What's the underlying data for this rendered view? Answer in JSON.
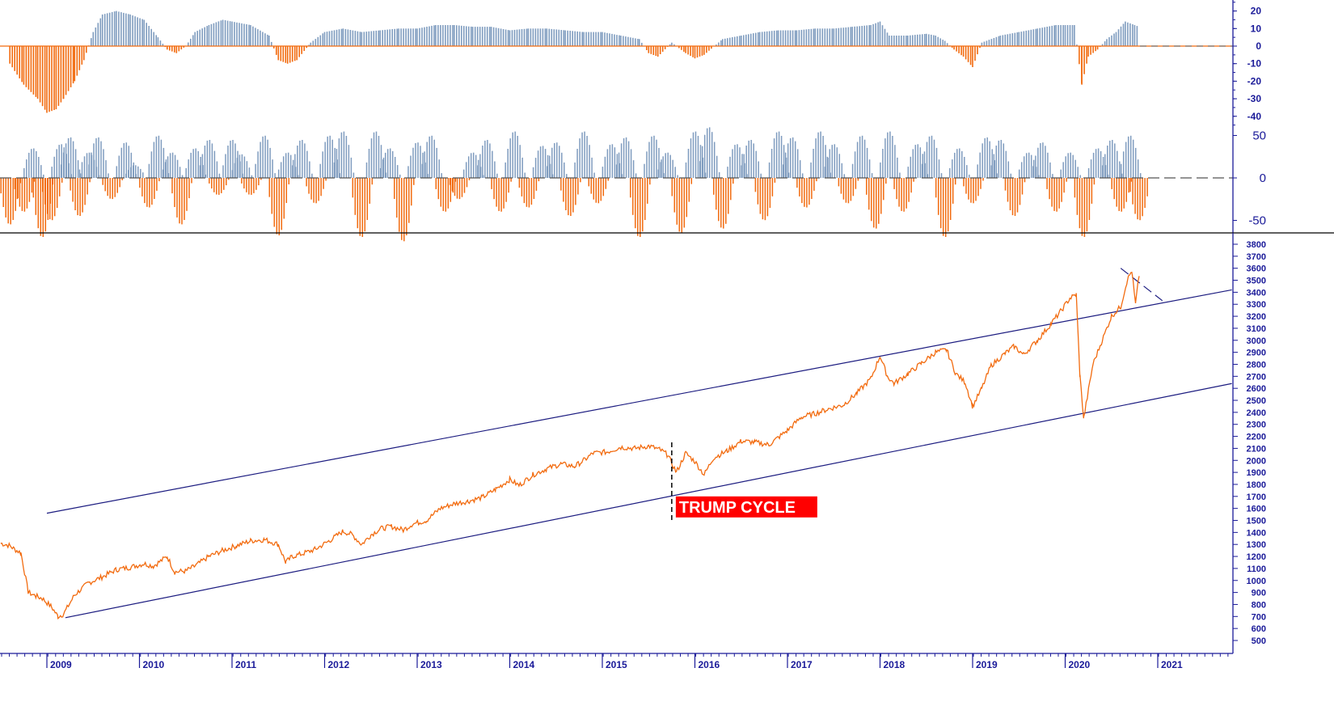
{
  "chart_data": [
    {
      "panel": "momentum-top",
      "type": "bar",
      "positive_color": "#7f9cbf",
      "negative_color": "#f26b0f",
      "zero_line": "dashed",
      "ylim": [
        -45,
        22
      ],
      "y_ticks": [
        "20",
        "10",
        "0",
        "-10",
        "-20",
        "-30",
        "-40"
      ],
      "x_range_years": [
        2008.6,
        2020.85
      ],
      "series": [
        {
          "x": [
            2008.6,
            2008.75,
            2008.9,
            2009.0,
            2009.1,
            2009.18,
            2009.3,
            2009.4,
            2009.5,
            2009.6,
            2009.75,
            2009.9,
            2010.05,
            2010.2,
            2010.3,
            2010.4,
            2010.5,
            2010.6,
            2010.75,
            2010.9,
            2011.0,
            2011.2,
            2011.4,
            2011.5,
            2011.6,
            2011.7,
            2011.85,
            2012.0,
            2012.2,
            2012.4,
            2012.6,
            2012.8,
            2013.0,
            2013.2,
            2013.4,
            2013.6,
            2013.8,
            2014.0,
            2014.2,
            2014.4,
            2014.6,
            2014.8,
            2015.0,
            2015.2,
            2015.4,
            2015.5,
            2015.6,
            2015.75,
            2015.9,
            2016.0,
            2016.1,
            2016.3,
            2016.5,
            2016.7,
            2016.9,
            2017.1,
            2017.3,
            2017.5,
            2017.7,
            2017.9,
            2018.0,
            2018.1,
            2018.3,
            2018.5,
            2018.6,
            2018.7,
            2018.8,
            2018.9,
            2019.0,
            2019.1,
            2019.3,
            2019.5,
            2019.7,
            2019.9,
            2020.0,
            2020.1,
            2020.18,
            2020.25,
            2020.35,
            2020.45,
            2020.55,
            2020.65,
            2020.75,
            2020.8
          ],
          "values": [
            -10,
            -22,
            -30,
            -38,
            -36,
            -30,
            -20,
            -8,
            8,
            18,
            20,
            18,
            15,
            5,
            -2,
            -4,
            0,
            8,
            12,
            15,
            14,
            12,
            6,
            -8,
            -10,
            -8,
            2,
            8,
            10,
            8,
            9,
            10,
            10,
            12,
            12,
            11,
            11,
            9,
            10,
            10,
            9,
            8,
            8,
            6,
            4,
            -4,
            -6,
            2,
            -4,
            -7,
            -5,
            4,
            6,
            8,
            9,
            9,
            10,
            10,
            11,
            12,
            14,
            6,
            6,
            7,
            6,
            3,
            -2,
            -6,
            -12,
            2,
            6,
            8,
            10,
            12,
            12,
            12,
            -22,
            -6,
            -2,
            4,
            8,
            14,
            12,
            11
          ]
        }
      ]
    },
    {
      "panel": "oscillator-middle",
      "type": "bar",
      "positive_color": "#7f9cbf",
      "negative_color": "#f26b0f",
      "zero_line": "dashed",
      "ylim": [
        -80,
        80
      ],
      "y_ticks": [
        "50",
        "0",
        "-50"
      ],
      "x_range_years": [
        2008.6,
        2020.85
      ],
      "series": [
        {
          "x": [
            2008.6,
            2008.75,
            2008.85,
            2008.95,
            2009.05,
            2009.15,
            2009.25,
            2009.35,
            2009.45,
            2009.55,
            2009.7,
            2009.85,
            2009.95,
            2010.1,
            2010.2,
            2010.35,
            2010.45,
            2010.6,
            2010.75,
            2010.85,
            2011.0,
            2011.1,
            2011.2,
            2011.35,
            2011.5,
            2011.6,
            2011.75,
            2011.9,
            2012.05,
            2012.2,
            2012.4,
            2012.55,
            2012.7,
            2012.85,
            2013.0,
            2013.15,
            2013.3,
            2013.45,
            2013.6,
            2013.75,
            2013.9,
            2014.05,
            2014.2,
            2014.35,
            2014.5,
            2014.65,
            2014.8,
            2014.95,
            2015.1,
            2015.25,
            2015.4,
            2015.55,
            2015.7,
            2015.85,
            2016.0,
            2016.15,
            2016.3,
            2016.45,
            2016.6,
            2016.75,
            2016.9,
            2017.05,
            2017.2,
            2017.35,
            2017.5,
            2017.65,
            2017.8,
            2017.95,
            2018.1,
            2018.25,
            2018.4,
            2018.55,
            2018.7,
            2018.85,
            2019.0,
            2019.15,
            2019.3,
            2019.45,
            2019.6,
            2019.75,
            2019.9,
            2020.05,
            2020.2,
            2020.35,
            2020.5,
            2020.6,
            2020.7,
            2020.8
          ],
          "values": [
            -55,
            -40,
            35,
            -70,
            -50,
            40,
            48,
            -45,
            30,
            48,
            -25,
            42,
            15,
            -35,
            50,
            30,
            -55,
            35,
            45,
            -20,
            45,
            28,
            -20,
            50,
            -68,
            30,
            45,
            -30,
            50,
            55,
            -70,
            55,
            35,
            -75,
            42,
            50,
            -40,
            -25,
            30,
            45,
            -40,
            55,
            -35,
            38,
            42,
            -45,
            55,
            -30,
            40,
            48,
            -70,
            50,
            30,
            -65,
            55,
            60,
            -60,
            40,
            45,
            -50,
            55,
            48,
            -35,
            55,
            40,
            -30,
            50,
            -60,
            55,
            -40,
            40,
            50,
            -70,
            35,
            -30,
            48,
            45,
            -45,
            30,
            42,
            -40,
            30,
            -70,
            35,
            45,
            -40,
            50,
            -50
          ]
        }
      ]
    },
    {
      "panel": "price-main",
      "type": "line",
      "line_color": "#f26b0f",
      "ylim": [
        450,
        3850
      ],
      "y_ticks": [
        "3800",
        "3700",
        "3600",
        "3500",
        "3400",
        "3300",
        "3200",
        "3100",
        "3000",
        "2900",
        "2800",
        "2700",
        "2600",
        "2500",
        "2400",
        "2300",
        "2200",
        "2100",
        "2000",
        "1900",
        "1800",
        "1700",
        "1600",
        "1500",
        "1400",
        "1300",
        "1200",
        "1100",
        "1000",
        "900",
        "800",
        "700",
        "600",
        "500"
      ],
      "x_tick_labels": [
        "2009",
        "2010",
        "2011",
        "2012",
        "2013",
        "2014",
        "2015",
        "2016",
        "2017",
        "2018",
        "2019",
        "2020",
        "2021"
      ],
      "series": [
        {
          "x": [
            2008.5,
            2008.6,
            2008.65,
            2008.72,
            2008.8,
            2008.88,
            2008.95,
            2009.05,
            2009.12,
            2009.18,
            2009.3,
            2009.45,
            2009.6,
            2009.75,
            2009.9,
            2010.05,
            2010.15,
            2010.3,
            2010.38,
            2010.5,
            2010.6,
            2010.75,
            2010.9,
            2011.05,
            2011.2,
            2011.35,
            2011.5,
            2011.58,
            2011.65,
            2011.75,
            2011.9,
            2012.05,
            2012.2,
            2012.3,
            2012.4,
            2012.5,
            2012.6,
            2012.72,
            2012.85,
            2012.95,
            2013.1,
            2013.25,
            2013.4,
            2013.55,
            2013.7,
            2013.85,
            2014.0,
            2014.1,
            2014.25,
            2014.4,
            2014.55,
            2014.7,
            2014.8,
            2014.9,
            2015.05,
            2015.2,
            2015.35,
            2015.5,
            2015.62,
            2015.7,
            2015.8,
            2015.9,
            2016.0,
            2016.1,
            2016.2,
            2016.35,
            2016.5,
            2016.65,
            2016.8,
            2016.9,
            2017.0,
            2017.15,
            2017.3,
            2017.45,
            2017.6,
            2017.75,
            2017.9,
            2018.0,
            2018.08,
            2018.15,
            2018.3,
            2018.45,
            2018.6,
            2018.72,
            2018.82,
            2018.92,
            2019.0,
            2019.1,
            2019.2,
            2019.35,
            2019.45,
            2019.55,
            2019.7,
            2019.85,
            2019.95,
            2020.05,
            2020.12,
            2020.16,
            2020.2,
            2020.3,
            2020.4,
            2020.5,
            2020.6,
            2020.67,
            2020.72,
            2020.76,
            2020.8
          ],
          "values": [
            1310,
            1290,
            1260,
            1230,
            900,
            870,
            850,
            780,
            700,
            720,
            880,
            980,
            1030,
            1090,
            1110,
            1140,
            1120,
            1200,
            1070,
            1080,
            1120,
            1200,
            1250,
            1290,
            1330,
            1340,
            1300,
            1150,
            1200,
            1220,
            1260,
            1330,
            1410,
            1380,
            1300,
            1380,
            1430,
            1450,
            1420,
            1470,
            1500,
            1600,
            1640,
            1660,
            1690,
            1760,
            1840,
            1790,
            1880,
            1930,
            1970,
            1950,
            2000,
            2060,
            2070,
            2110,
            2100,
            2120,
            2090,
            2050,
            1900,
            2060,
            1990,
            1880,
            2020,
            2080,
            2160,
            2150,
            2130,
            2190,
            2250,
            2360,
            2390,
            2430,
            2460,
            2560,
            2680,
            2870,
            2700,
            2640,
            2720,
            2810,
            2900,
            2920,
            2720,
            2650,
            2450,
            2600,
            2790,
            2890,
            2950,
            2880,
            3000,
            3140,
            3240,
            3350,
            3380,
            2700,
            2350,
            2800,
            3000,
            3200,
            3280,
            3500,
            3580,
            3300,
            3550
          ]
        }
      ],
      "channel": {
        "upper_line": {
          "x": [
            2009.0,
            2021.8
          ],
          "values": [
            1560,
            3420
          ]
        },
        "lower_line": {
          "x": [
            2009.2,
            2021.8
          ],
          "values": [
            690,
            2640
          ]
        },
        "resistance_dashed": {
          "x": [
            2020.6,
            2021.05
          ],
          "values": [
            3600,
            3330
          ]
        }
      },
      "annotations": [
        "TRUMP CYCLE"
      ],
      "annotation_marker_year": 2015.75
    }
  ],
  "colors": {
    "accent_orange": "#f26b0f",
    "bar_blue": "#7f9cbf",
    "axis_navy": "#1a1a99",
    "annotation_red": "#ff0000",
    "channel_line": "#1c1c80"
  }
}
